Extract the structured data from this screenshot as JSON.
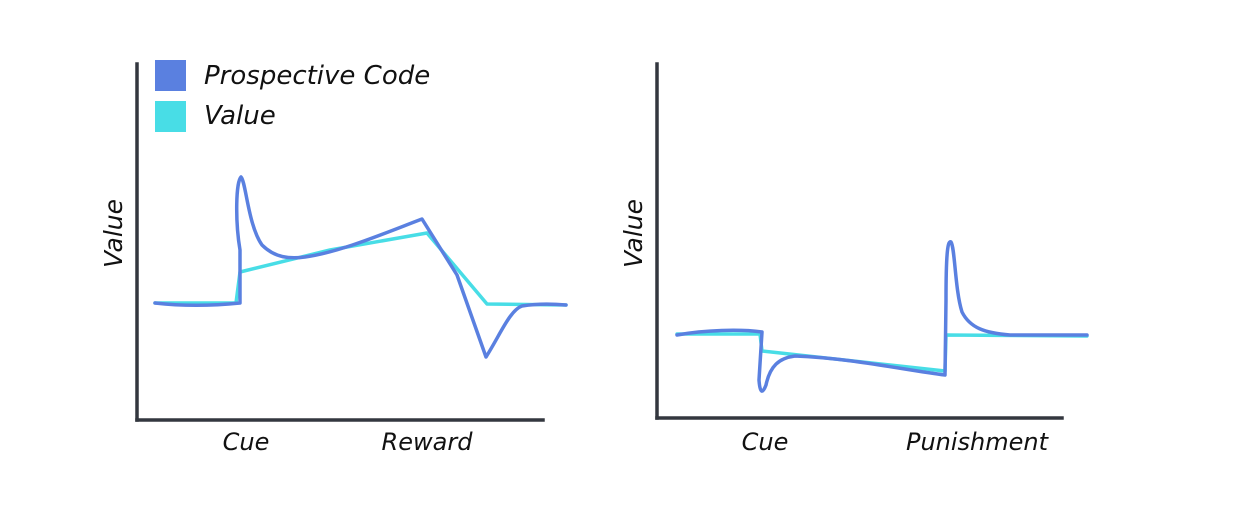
{
  "colors": {
    "prospective_code": "#5a80e0",
    "value": "#48dde6",
    "axis": "#33373f",
    "text": "#111111"
  },
  "chart_data": [
    {
      "type": "line",
      "title": "",
      "xlabel": "",
      "ylabel": "Value",
      "xtick_labels": [
        "Cue",
        "Reward"
      ],
      "legend": {
        "placement": "top-left",
        "entries": [
          "Prospective Code",
          "Value"
        ]
      },
      "grid": false,
      "note": "Schematic plot; no numeric axis scale is printed. Values are relative (0 = baseline).",
      "series": [
        {
          "name": "Prospective Code",
          "color": "#5a80e0",
          "points": [
            [
              0,
              0
            ],
            [
              0.6,
              -0.03
            ],
            [
              1.0,
              0
            ],
            [
              1.02,
              0.45
            ],
            [
              1.06,
              1.25
            ],
            [
              1.15,
              0.85
            ],
            [
              1.5,
              0.45
            ],
            [
              2.2,
              0.5
            ],
            [
              2.9,
              0.85
            ],
            [
              3.5,
              -0.55
            ],
            [
              4.0,
              0
            ],
            [
              4.3,
              0
            ]
          ]
        },
        {
          "name": "Value",
          "color": "#48dde6",
          "points": [
            [
              0,
              0
            ],
            [
              1.0,
              0
            ],
            [
              1.02,
              0.3
            ],
            [
              2.0,
              0.5
            ],
            [
              2.9,
              0.7
            ],
            [
              3.5,
              0
            ],
            [
              4.3,
              0
            ]
          ]
        }
      ]
    },
    {
      "type": "line",
      "title": "",
      "xlabel": "",
      "ylabel": "Value",
      "xtick_labels": [
        "Cue",
        "Punishment"
      ],
      "grid": false,
      "note": "Schematic plot; no numeric axis scale is printed. Values are relative (0 = baseline).",
      "series": [
        {
          "name": "Prospective Code",
          "color": "#5a80e0",
          "points": [
            [
              0,
              0
            ],
            [
              0.8,
              0.02
            ],
            [
              0.95,
              0
            ],
            [
              1.0,
              -0.6
            ],
            [
              1.2,
              -0.2
            ],
            [
              2.0,
              -0.3
            ],
            [
              2.8,
              -0.4
            ],
            [
              2.85,
              0
            ],
            [
              2.9,
              0.9
            ],
            [
              3.1,
              0.1
            ],
            [
              3.4,
              0
            ],
            [
              4.3,
              0
            ]
          ]
        },
        {
          "name": "Value",
          "color": "#48dde6",
          "points": [
            [
              0,
              0
            ],
            [
              0.95,
              0
            ],
            [
              1.0,
              -0.15
            ],
            [
              2.8,
              -0.35
            ],
            [
              2.85,
              0
            ],
            [
              4.3,
              0
            ]
          ]
        }
      ]
    }
  ]
}
